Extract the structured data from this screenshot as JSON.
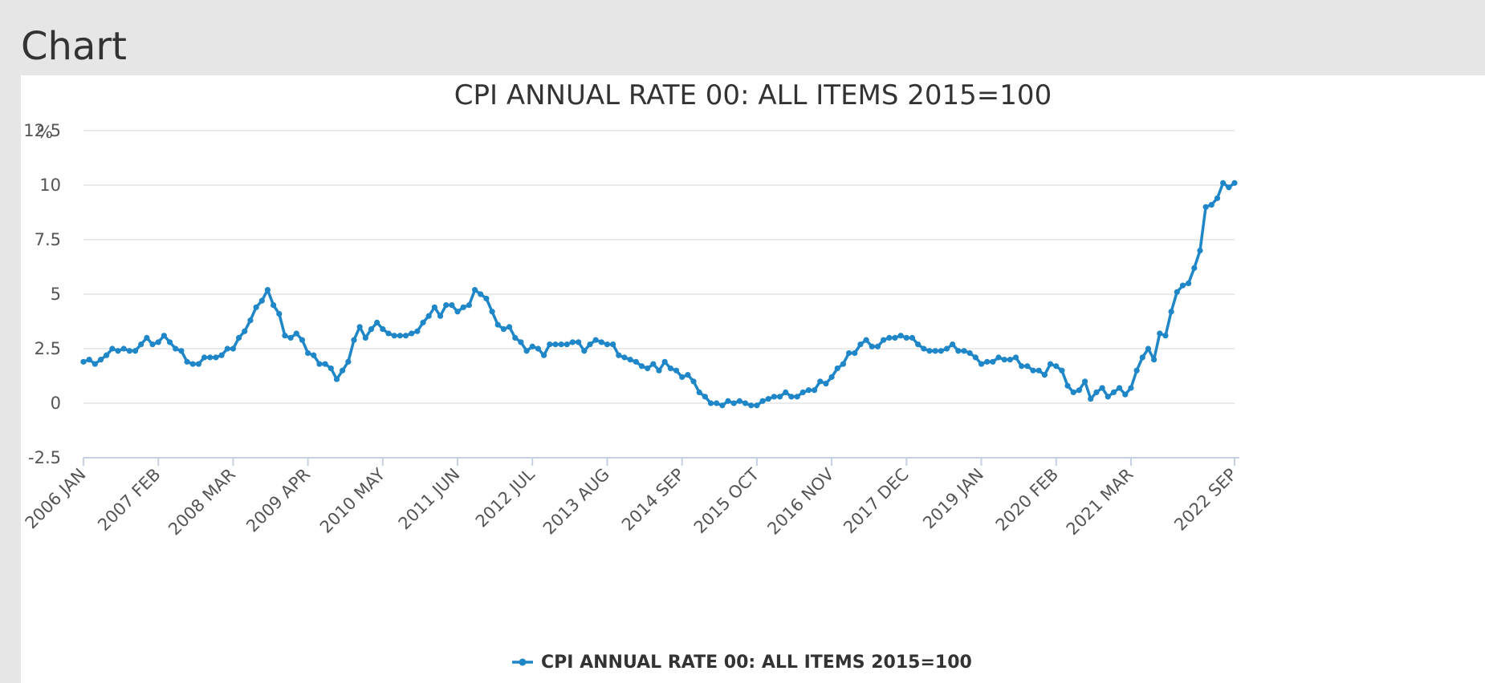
{
  "page": {
    "heading": "Chart"
  },
  "chart_data": {
    "type": "line",
    "title": "CPI ANNUAL RATE 00: ALL ITEMS 2015=100",
    "ylabel": "%",
    "xlabel": "",
    "ylim": [
      -2.5,
      12.5
    ],
    "yticks": [
      "12.5",
      "10",
      "7.5",
      "5",
      "2.5",
      "0",
      "-2.5"
    ],
    "ytick_values": [
      12.5,
      10,
      7.5,
      5,
      2.5,
      0,
      -2.5
    ],
    "xtick_labels": [
      "2006 JAN",
      "2007 FEB",
      "2008 MAR",
      "2009 APR",
      "2010 MAY",
      "2011 JUN",
      "2012 JUL",
      "2013 AUG",
      "2014 SEP",
      "2015 OCT",
      "2016 NOV",
      "2017 DEC",
      "2019 JAN",
      "2020 FEB",
      "2021 MAR",
      "2022 SEP"
    ],
    "xtick_month_index": [
      0,
      13,
      26,
      39,
      52,
      65,
      78,
      91,
      104,
      117,
      130,
      143,
      156,
      169,
      182,
      200
    ],
    "start": "2006 JAN",
    "end": "2022 SEP",
    "grid": true,
    "legend_position": "bottom-center",
    "color": "#1f86c7",
    "series": [
      {
        "name": "CPI ANNUAL RATE 00: ALL ITEMS 2015=100",
        "values": [
          1.9,
          2.0,
          1.8,
          2.0,
          2.2,
          2.5,
          2.4,
          2.5,
          2.4,
          2.4,
          2.7,
          3.0,
          2.7,
          2.8,
          3.1,
          2.8,
          2.5,
          2.4,
          1.9,
          1.8,
          1.8,
          2.1,
          2.1,
          2.1,
          2.2,
          2.5,
          2.5,
          3.0,
          3.3,
          3.8,
          4.4,
          4.7,
          5.2,
          4.5,
          4.1,
          3.1,
          3.0,
          3.2,
          2.9,
          2.3,
          2.2,
          1.8,
          1.8,
          1.6,
          1.1,
          1.5,
          1.9,
          2.9,
          3.5,
          3.0,
          3.4,
          3.7,
          3.4,
          3.2,
          3.1,
          3.1,
          3.1,
          3.2,
          3.3,
          3.7,
          4.0,
          4.4,
          4.0,
          4.5,
          4.5,
          4.2,
          4.4,
          4.5,
          5.2,
          5.0,
          4.8,
          4.2,
          3.6,
          3.4,
          3.5,
          3.0,
          2.8,
          2.4,
          2.6,
          2.5,
          2.2,
          2.7,
          2.7,
          2.7,
          2.7,
          2.8,
          2.8,
          2.4,
          2.7,
          2.9,
          2.8,
          2.7,
          2.7,
          2.2,
          2.1,
          2.0,
          1.9,
          1.7,
          1.6,
          1.8,
          1.5,
          1.9,
          1.6,
          1.5,
          1.2,
          1.3,
          1.0,
          0.5,
          0.3,
          0.0,
          0.0,
          -0.1,
          0.1,
          0.0,
          0.1,
          0.0,
          -0.1,
          -0.1,
          0.1,
          0.2,
          0.3,
          0.3,
          0.5,
          0.3,
          0.3,
          0.5,
          0.6,
          0.6,
          1.0,
          0.9,
          1.2,
          1.6,
          1.8,
          2.3,
          2.3,
          2.7,
          2.9,
          2.6,
          2.6,
          2.9,
          3.0,
          3.0,
          3.1,
          3.0,
          3.0,
          2.7,
          2.5,
          2.4,
          2.4,
          2.4,
          2.5,
          2.7,
          2.4,
          2.4,
          2.3,
          2.1,
          1.8,
          1.9,
          1.9,
          2.1,
          2.0,
          2.0,
          2.1,
          1.7,
          1.7,
          1.5,
          1.5,
          1.3,
          1.8,
          1.7,
          1.5,
          0.8,
          0.5,
          0.6,
          1.0,
          0.2,
          0.5,
          0.7,
          0.3,
          0.5,
          0.7,
          0.4,
          0.7,
          1.5,
          2.1,
          2.5,
          2.0,
          3.2,
          3.1,
          4.2,
          5.1,
          5.4,
          5.5,
          6.2,
          7.0,
          9.0,
          9.1,
          9.4,
          10.1,
          9.9,
          10.1
        ]
      }
    ]
  }
}
